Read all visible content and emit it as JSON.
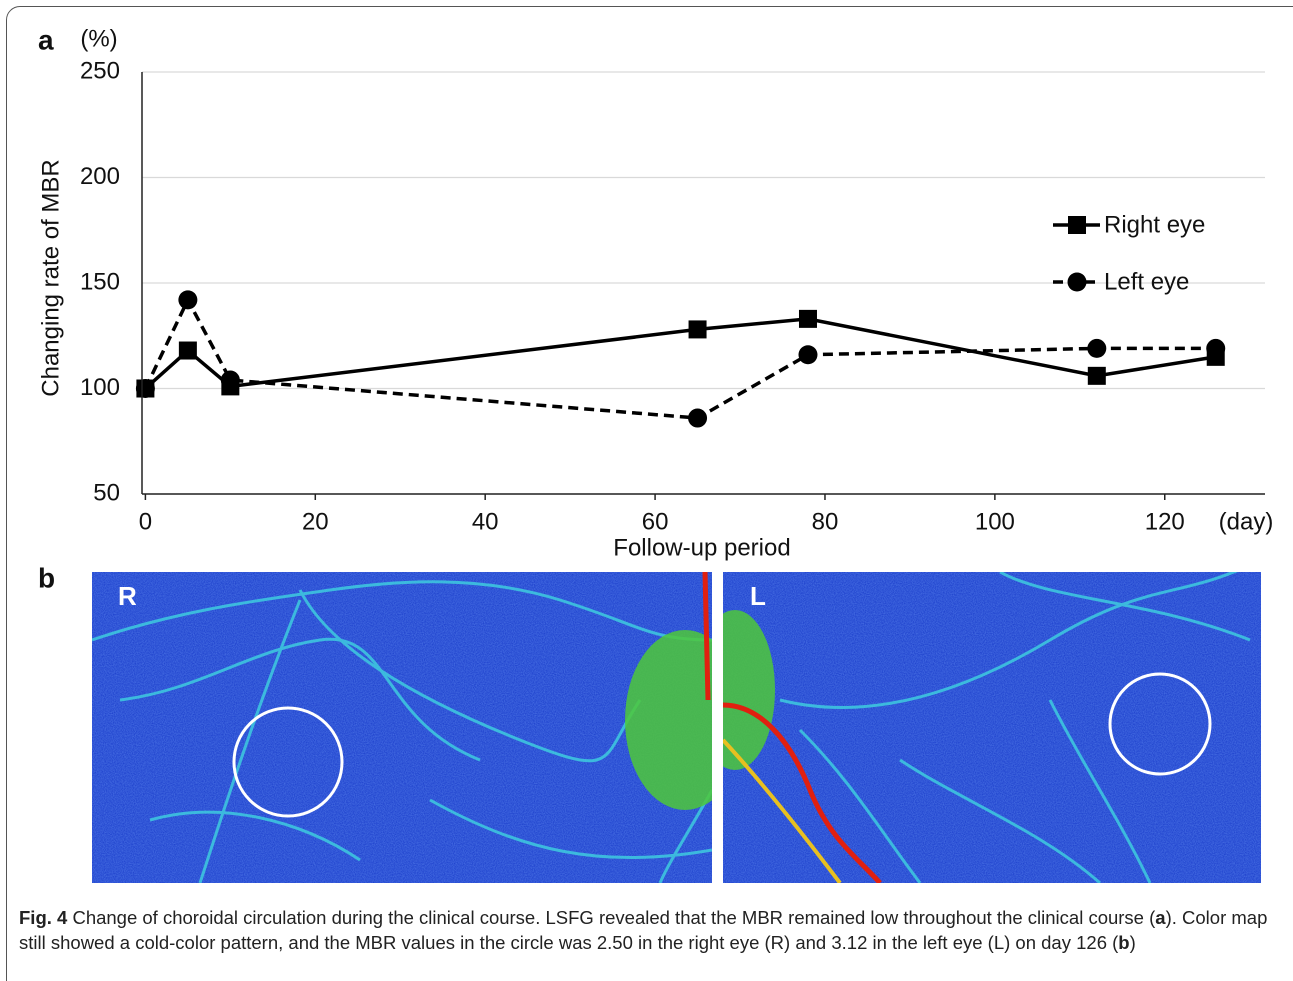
{
  "panel_labels": [
    "a",
    "b"
  ],
  "chart_data": {
    "type": "line",
    "y_unit": "(%)",
    "x_unit": "(day)",
    "ylabel": "Changing rate of MBR",
    "xlabel": "Follow-up period",
    "xlim": [
      -0.4,
      131.8
    ],
    "xticks": [
      0,
      20,
      40,
      60,
      80,
      100,
      120
    ],
    "ylim": [
      50,
      250
    ],
    "yticks": [
      50,
      100,
      150,
      200,
      250
    ],
    "grid": true,
    "legend": "right",
    "series": [
      {
        "name": "Right eye",
        "color": "#000000",
        "line_style": "solid",
        "marker": "square",
        "x": [
          0,
          5,
          10,
          65,
          78,
          112,
          126
        ],
        "values": [
          100,
          118,
          101,
          128,
          133,
          106,
          115
        ]
      },
      {
        "name": "Left eye",
        "color": "#000000",
        "line_style": "dashed",
        "marker": "circle",
        "x": [
          0,
          5,
          10,
          65,
          78,
          112,
          126
        ],
        "values": [
          100,
          142,
          104,
          86,
          116,
          119,
          119
        ]
      }
    ]
  },
  "images": [
    {
      "label": "R"
    },
    {
      "label": "L"
    }
  ],
  "caption": {
    "label": "Fig. 4",
    "parts": [
      "Change of choroidal circulation during the clinical course. LSFG revealed that the MBR remained low throughout the clinical course (",
      "a",
      "). Color map still showed a cold-color pattern, and the MBR values in the circle was 2.50 in the right eye (R) and 3.12 in the left eye (L) on day 126 (",
      "b",
      ")"
    ]
  }
}
